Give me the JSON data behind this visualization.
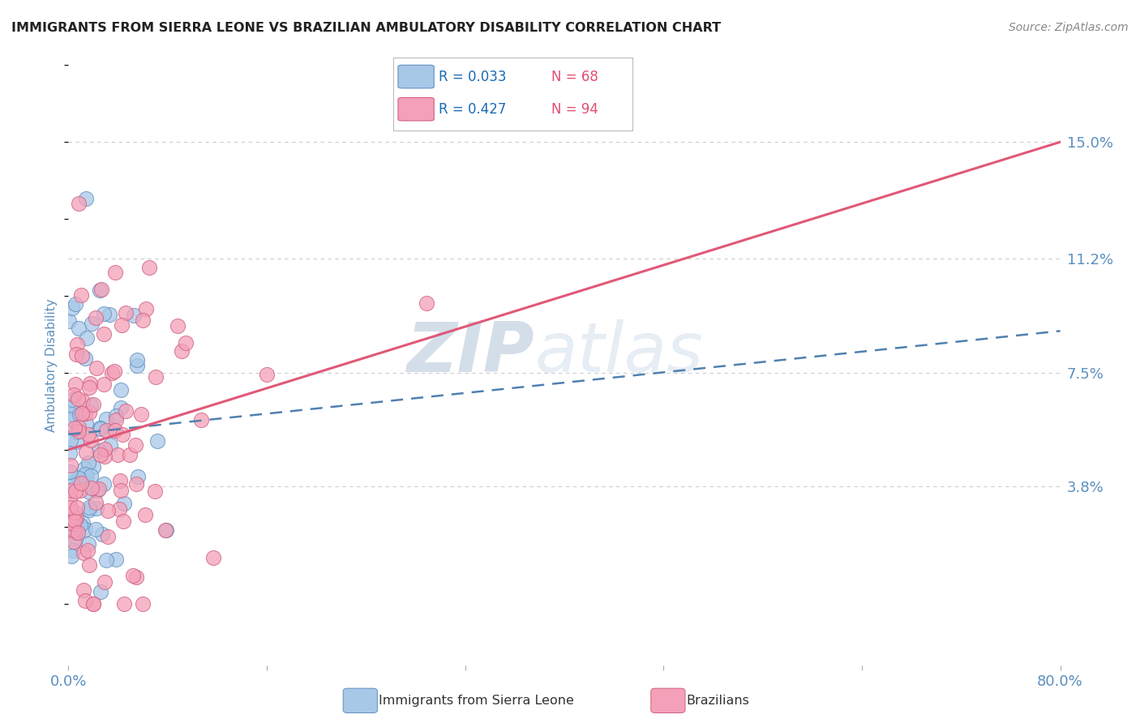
{
  "title": "IMMIGRANTS FROM SIERRA LEONE VS BRAZILIAN AMBULATORY DISABILITY CORRELATION CHART",
  "source_text": "Source: ZipAtlas.com",
  "ylabel": "Ambulatory Disability",
  "series": [
    {
      "label": "Immigrants from Sierra Leone",
      "R": 0.033,
      "N": 68,
      "color": "#a8c8e8",
      "edge_color": "#6090c0",
      "line_color": "#5080b0",
      "line_style": "--",
      "intercept": 0.055,
      "slope": 0.042
    },
    {
      "label": "Brazilians",
      "R": 0.427,
      "N": 94,
      "color": "#f4a0b8",
      "edge_color": "#d06080",
      "line_color": "#e05878",
      "line_style": "-",
      "intercept": 0.05,
      "slope": 0.125
    }
  ],
  "xlim": [
    0.0,
    0.8
  ],
  "ylim": [
    -0.02,
    0.175
  ],
  "yticks": [
    0.038,
    0.075,
    0.112,
    0.15
  ],
  "ytick_labels": [
    "3.8%",
    "7.5%",
    "11.2%",
    "15.0%"
  ],
  "xticks": [
    0.0,
    0.16,
    0.32,
    0.48,
    0.64,
    0.8
  ],
  "xtick_labels": [
    "0.0%",
    "",
    "",
    "",
    "",
    "80.0%"
  ],
  "legend_R_color": "#1a6bb5",
  "legend_N_color": "#e05070",
  "watermark_zip": "ZIP",
  "watermark_atlas": "atlas",
  "background_color": "#ffffff",
  "grid_color": "#cccccc",
  "title_color": "#222222",
  "axis_label_color": "#5b8fbf",
  "source_color": "#888888"
}
